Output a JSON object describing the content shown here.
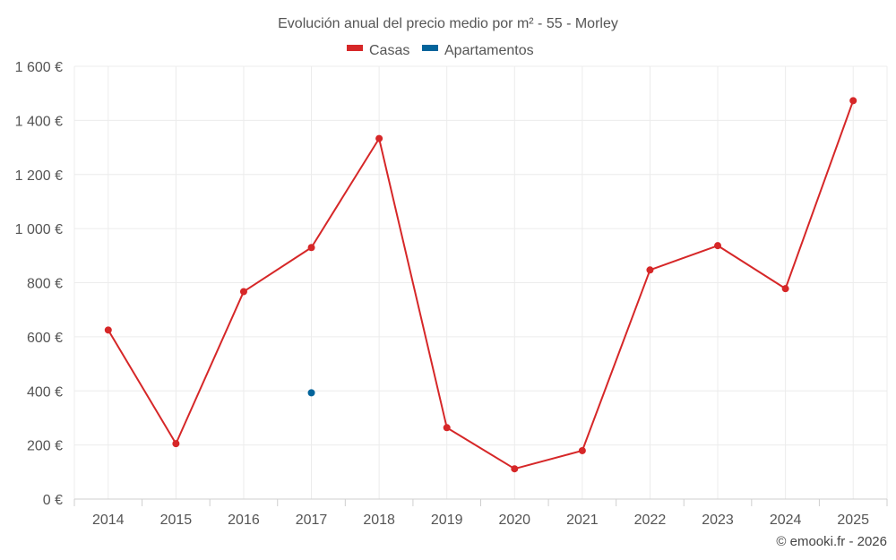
{
  "chart_data": {
    "type": "line",
    "title": "Evolución anual del precio medio por m² - 55 - Morley",
    "categories": [
      "2014",
      "2015",
      "2016",
      "2017",
      "2018",
      "2019",
      "2020",
      "2021",
      "2022",
      "2023",
      "2024",
      "2025"
    ],
    "ylim": [
      0,
      1600
    ],
    "yticks": [
      0,
      200,
      400,
      600,
      800,
      1000,
      1200,
      1400,
      1600
    ],
    "ytick_labels": [
      "0 €",
      "200 €",
      "400 €",
      "600 €",
      "800 €",
      "1 000 €",
      "1 200 €",
      "1 400 €",
      "1 600 €"
    ],
    "grid": true,
    "legend_position": "top-center",
    "series": [
      {
        "name": "Casas",
        "color": "#d62728",
        "values": [
          625,
          205,
          767,
          930,
          1333,
          264,
          112,
          179,
          847,
          937,
          778,
          1473
        ]
      },
      {
        "name": "Apartamentos",
        "color": "#03649b",
        "values": [
          null,
          null,
          null,
          393,
          null,
          null,
          null,
          null,
          null,
          null,
          null,
          null
        ]
      }
    ]
  },
  "credit": "© emooki.fr - 2026"
}
